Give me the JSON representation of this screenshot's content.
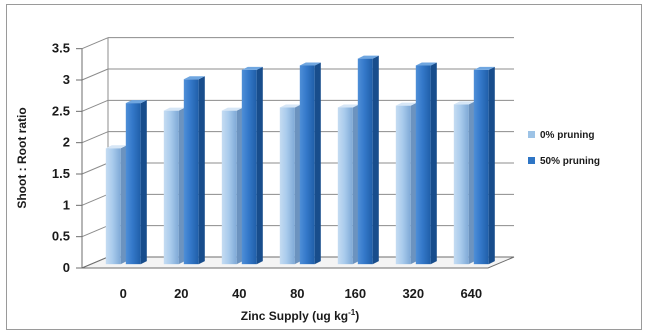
{
  "chart_data": {
    "type": "bar",
    "title": "",
    "xlabel": "Zinc  Supply  (ug kg",
    "xlabel_sup": "-1",
    "xlabel_close": ")",
    "ylabel": "Shoot : Root  ratio",
    "categories": [
      "0",
      "20",
      "40",
      "80",
      "160",
      "320",
      "640"
    ],
    "ylim": [
      0,
      3.5
    ],
    "yticks": [
      "0",
      "0.5",
      "1",
      "1.5",
      "2",
      "2.5",
      "3",
      "3.5"
    ],
    "grid": true,
    "legend_position": "right",
    "series": [
      {
        "name": "0% pruning",
        "color": "#9dc3e6",
        "values": [
          1.85,
          2.45,
          2.45,
          2.5,
          2.5,
          2.53,
          2.55
        ]
      },
      {
        "name": "50% pruning",
        "color": "#2e75c5",
        "values": [
          2.57,
          2.95,
          3.1,
          3.17,
          3.28,
          3.17,
          3.1
        ]
      }
    ]
  }
}
